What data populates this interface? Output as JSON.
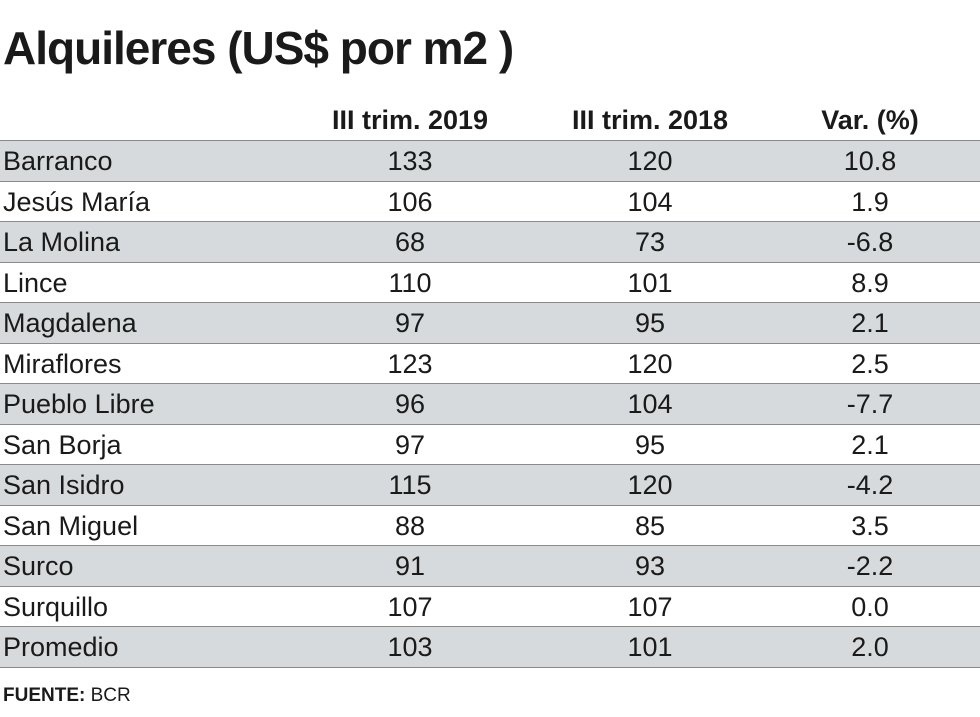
{
  "title": "Alquileres (US$ por m2 )",
  "chart_data": {
    "type": "table",
    "title": "Alquileres (US$ por m2 )",
    "columns": [
      "",
      "III trim. 2019",
      "III trim. 2018",
      "Var. (%)"
    ],
    "rows": [
      {
        "district": "Barranco",
        "q3_2019": "133",
        "q3_2018": "120",
        "var": "10.8"
      },
      {
        "district": "Jesús María",
        "q3_2019": "106",
        "q3_2018": "104",
        "var": "1.9"
      },
      {
        "district": "La Molina",
        "q3_2019": "68",
        "q3_2018": "73",
        "var": "-6.8"
      },
      {
        "district": "Lince",
        "q3_2019": "110",
        "q3_2018": "101",
        "var": "8.9"
      },
      {
        "district": "Magdalena",
        "q3_2019": "97",
        "q3_2018": "95",
        "var": "2.1"
      },
      {
        "district": "Miraflores",
        "q3_2019": "123",
        "q3_2018": "120",
        "var": "2.5"
      },
      {
        "district": "Pueblo Libre",
        "q3_2019": "96",
        "q3_2018": "104",
        "var": "-7.7"
      },
      {
        "district": "San Borja",
        "q3_2019": "97",
        "q3_2018": "95",
        "var": "2.1"
      },
      {
        "district": "San Isidro",
        "q3_2019": "115",
        "q3_2018": "120",
        "var": "-4.2"
      },
      {
        "district": "San Miguel",
        "q3_2019": "88",
        "q3_2018": "85",
        "var": "3.5"
      },
      {
        "district": "Surco",
        "q3_2019": "91",
        "q3_2018": "93",
        "var": "-2.2"
      },
      {
        "district": "Surquillo",
        "q3_2019": "107",
        "q3_2018": "107",
        "var": "0.0"
      },
      {
        "district": "Promedio",
        "q3_2019": "103",
        "q3_2018": "101",
        "var": "2.0"
      }
    ]
  },
  "source": {
    "label": "FUENTE:",
    "value": "BCR"
  },
  "colors": {
    "shade": "#d7dadc",
    "rule": "#8a8a8a",
    "text": "#1a1a1a"
  }
}
